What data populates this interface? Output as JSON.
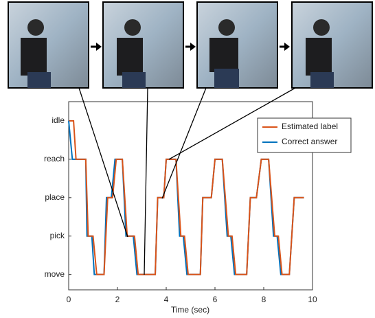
{
  "chart_data": {
    "type": "line",
    "x_label": "Time (sec)",
    "xlim": [
      0,
      10
    ],
    "xticks": [
      0,
      2,
      4,
      6,
      8,
      10
    ],
    "ylim": [
      -0.4,
      4.5
    ],
    "yticks": [
      {
        "value": 0,
        "label": "move"
      },
      {
        "value": 1,
        "label": "pick"
      },
      {
        "value": 2,
        "label": "place"
      },
      {
        "value": 3,
        "label": "reach"
      },
      {
        "value": 4,
        "label": "idle"
      }
    ],
    "legend": "upper right",
    "series": [
      {
        "name": "Correct answer",
        "color": "#0072bd",
        "x": [
          0.0,
          0.15,
          0.7,
          0.75,
          0.95,
          1.05,
          1.45,
          1.55,
          1.75,
          1.9,
          2.2,
          2.35,
          2.65,
          2.8,
          3.55,
          3.65,
          3.9,
          4.0,
          4.4,
          4.55,
          4.7,
          4.85,
          5.4,
          5.5,
          5.85,
          6.0,
          6.3,
          6.5,
          6.65,
          6.8,
          7.3,
          7.45,
          7.7,
          7.9,
          8.2,
          8.4,
          8.55,
          8.7,
          9.05,
          9.25,
          9.65
        ],
        "values": [
          4,
          3,
          3,
          1,
          1,
          0,
          0,
          2,
          2,
          3,
          3,
          1,
          1,
          0,
          0,
          2,
          2,
          3,
          3,
          1,
          1,
          0,
          0,
          2,
          2,
          3,
          3,
          1,
          1,
          0,
          0,
          2,
          2,
          3,
          3,
          1,
          1,
          0,
          0,
          2,
          2
        ]
      },
      {
        "name": "Estimated label",
        "color": "#d95319",
        "x": [
          0.03,
          0.2,
          0.3,
          0.7,
          0.8,
          1.0,
          1.15,
          1.45,
          1.6,
          1.8,
          1.95,
          2.2,
          2.4,
          2.7,
          2.85,
          3.55,
          3.65,
          3.9,
          4.0,
          4.4,
          4.6,
          4.75,
          4.9,
          5.4,
          5.5,
          5.85,
          6.0,
          6.3,
          6.55,
          6.7,
          6.85,
          7.3,
          7.45,
          7.7,
          7.9,
          8.2,
          8.45,
          8.6,
          8.75,
          9.05,
          9.25,
          9.65
        ],
        "values": [
          4,
          4,
          3,
          3,
          1,
          1,
          0,
          0,
          2,
          2,
          3,
          3,
          1,
          1,
          0,
          0,
          2,
          2,
          3,
          3,
          1,
          1,
          0,
          0,
          2,
          2,
          3,
          3,
          1,
          1,
          0,
          0,
          2,
          2,
          3,
          3,
          1,
          1,
          0,
          0,
          2,
          2
        ]
      }
    ]
  }
}
